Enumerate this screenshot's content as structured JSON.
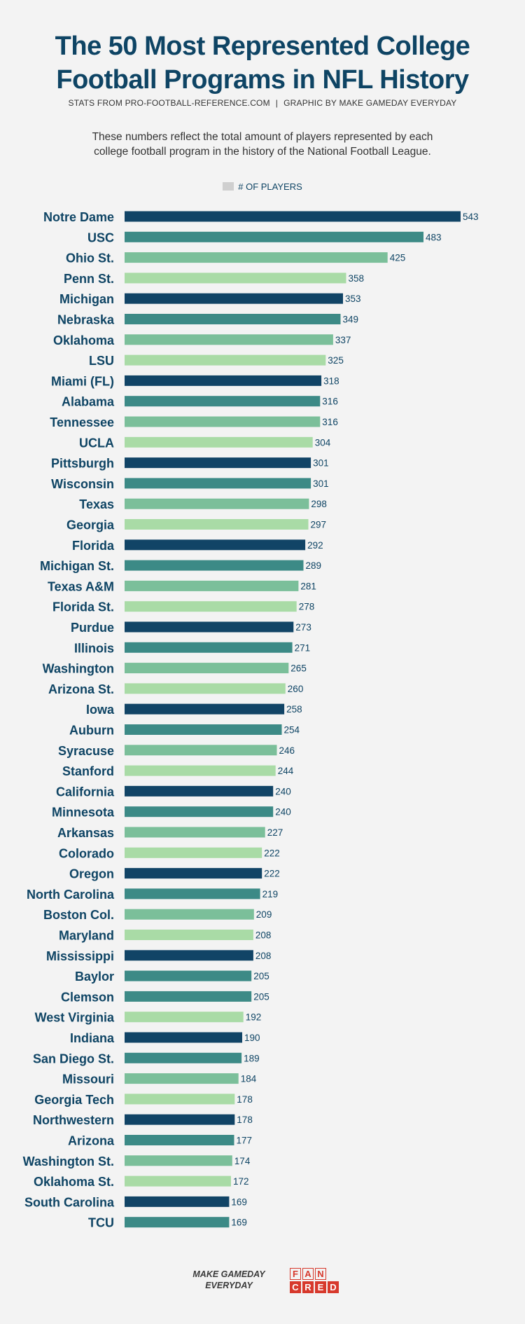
{
  "header": {
    "title_line1": "The 50 Most Represented College",
    "title_line2": "Football Programs in NFL History",
    "credit_left": "STATS FROM PRO-FOOTBALL-REFERENCE.COM",
    "credit_sep": "|",
    "credit_right": "GRAPHIC BY MAKE GAMEDAY EVERYDAY",
    "desc_line1": "These numbers reflect the total amount of players represented by each",
    "desc_line2": "college football program in the history of the National Football League."
  },
  "legend": {
    "label": "# OF PLAYERS"
  },
  "footer": {
    "brand_line1": "MAKE GAMEDAY",
    "brand_line2": "EVERYDAY",
    "logo_top": [
      "F",
      "A",
      "N"
    ],
    "logo_bottom": [
      "C",
      "R",
      "E",
      "D"
    ]
  },
  "colors": {
    "title": "#0e4464",
    "palette": [
      "#114466",
      "#3c8a86",
      "#7bbf9a",
      "#a9dba6"
    ]
  },
  "chart_data": {
    "type": "bar",
    "orientation": "horizontal",
    "title": "The 50 Most Represented College Football Programs in NFL History",
    "series_name": "# OF PLAYERS",
    "xlim": [
      0,
      543
    ],
    "grid": false,
    "legend": "top-center",
    "categories": [
      "Notre Dame",
      "USC",
      "Ohio St.",
      "Penn St.",
      "Michigan",
      "Nebraska",
      "Oklahoma",
      "LSU",
      "Miami (FL)",
      "Alabama",
      "Tennessee",
      "UCLA",
      "Pittsburgh",
      "Wisconsin",
      "Texas",
      "Georgia",
      "Florida",
      "Michigan St.",
      "Texas A&M",
      "Florida St.",
      "Purdue",
      "Illinois",
      "Washington",
      "Arizona St.",
      "Iowa",
      "Auburn",
      "Syracuse",
      "Stanford",
      "California",
      "Minnesota",
      "Arkansas",
      "Colorado",
      "Oregon",
      "North Carolina",
      "Boston Col.",
      "Maryland",
      "Mississippi",
      "Baylor",
      "Clemson",
      "West Virginia",
      "Indiana",
      "San Diego St.",
      "Missouri",
      "Georgia Tech",
      "Northwestern",
      "Arizona",
      "Washington St.",
      "Oklahoma St.",
      "South Carolina",
      "TCU"
    ],
    "values": [
      543,
      483,
      425,
      358,
      353,
      349,
      337,
      325,
      318,
      316,
      316,
      304,
      301,
      301,
      298,
      297,
      292,
      289,
      281,
      278,
      273,
      271,
      265,
      260,
      258,
      254,
      246,
      244,
      240,
      240,
      227,
      222,
      222,
      219,
      209,
      208,
      208,
      205,
      205,
      192,
      190,
      189,
      184,
      178,
      178,
      177,
      174,
      172,
      169,
      169
    ],
    "color_index": [
      0,
      1,
      2,
      3,
      0,
      1,
      2,
      3,
      0,
      1,
      2,
      3,
      0,
      1,
      2,
      3,
      0,
      1,
      2,
      3,
      0,
      1,
      2,
      3,
      0,
      1,
      2,
      3,
      0,
      1,
      2,
      3,
      0,
      1,
      2,
      3,
      0,
      1,
      1,
      3,
      0,
      1,
      2,
      3,
      0,
      1,
      2,
      3,
      0,
      1
    ]
  }
}
